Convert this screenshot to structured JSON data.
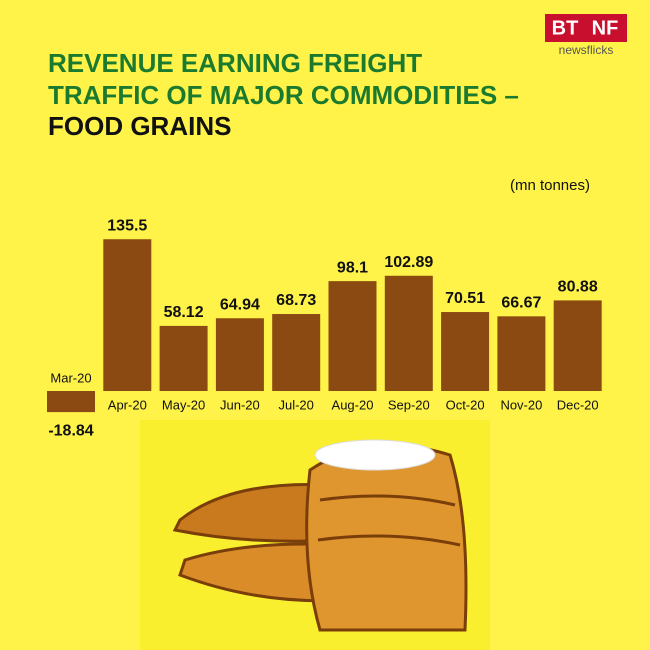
{
  "brand": {
    "left": "BT",
    "right": "NF",
    "sub": "newsflicks"
  },
  "chart_data": {
    "type": "bar",
    "title_lines": [
      "REVENUE EARNING FREIGHT",
      "TRAFFIC OF MAJOR COMMODITIES –",
      "FOOD GRAINS"
    ],
    "unit": "(mn tonnes)",
    "categories": [
      "Mar-20",
      "Apr-20",
      "May-20",
      "Jun-20",
      "Jul-20",
      "Aug-20",
      "Sep-20",
      "Oct-20",
      "Nov-20",
      "Dec-20"
    ],
    "values": [
      -18.84,
      135.5,
      58.12,
      64.94,
      68.73,
      98.1,
      102.89,
      70.51,
      66.67,
      80.88
    ],
    "color": "#8b4a12"
  }
}
